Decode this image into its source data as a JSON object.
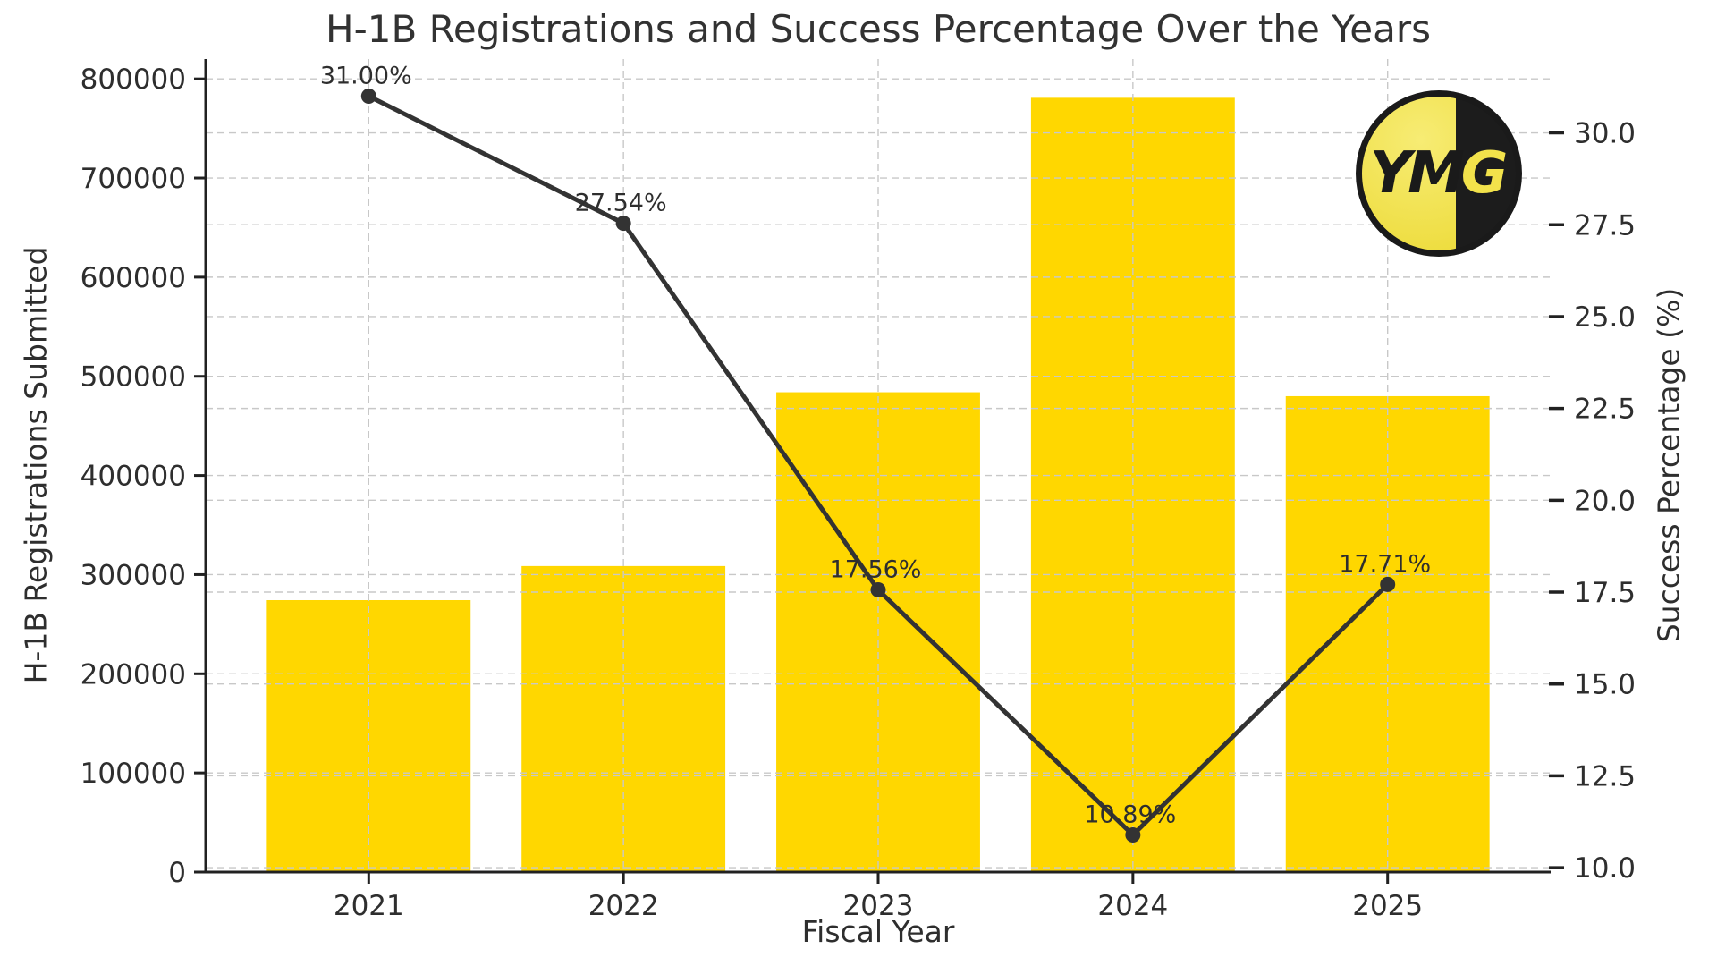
{
  "title": "H-1B Registrations and Success Percentage Over the Years",
  "xlabel": "Fiscal Year",
  "ylabel_left": "H-1B Registrations Submitted",
  "ylabel_right": "Success Percentage (%)",
  "logo": {
    "text_left": "YM",
    "text_right": "G"
  },
  "colors": {
    "background": "#ffffff",
    "bar": "#FFD700",
    "line": "#333333",
    "text": "#2e2e2e",
    "spine": "#212121",
    "grid": "#c8c8c8",
    "logo_yellow": "#f2e24b",
    "logo_black": "#1c1c1c"
  },
  "chart_data": {
    "type": "bar",
    "subtype": "dual-axis bar+line",
    "categories": [
      "2021",
      "2022",
      "2023",
      "2024",
      "2025"
    ],
    "series": [
      {
        "name": "H-1B Registrations Submitted",
        "type": "bar",
        "axis": "left",
        "values": [
          274237,
          308613,
          483927,
          780884,
          479953
        ]
      },
      {
        "name": "Success Percentage",
        "type": "line",
        "axis": "right",
        "values": [
          31.0,
          27.54,
          17.56,
          10.89,
          17.71
        ],
        "point_labels": [
          "31.00%",
          "27.54%",
          "17.56%",
          "10.89%",
          "17.71%"
        ]
      }
    ],
    "left_axis": {
      "lim": [
        0,
        820000
      ],
      "ticks": [
        0,
        100000,
        200000,
        300000,
        400000,
        500000,
        600000,
        700000,
        800000
      ],
      "tick_labels": [
        "0",
        "100000",
        "200000",
        "300000",
        "400000",
        "500000",
        "600000",
        "700000",
        "800000"
      ]
    },
    "right_axis": {
      "lim": [
        9.88,
        32.01
      ],
      "ticks": [
        10.0,
        12.5,
        15.0,
        17.5,
        20.0,
        22.5,
        25.0,
        27.5,
        30.0
      ],
      "tick_labels": [
        "10.0",
        "12.5",
        "15.0",
        "17.5",
        "20.0",
        "22.5",
        "25.0",
        "27.5",
        "30.0"
      ]
    },
    "grid": true,
    "legend": "none"
  }
}
